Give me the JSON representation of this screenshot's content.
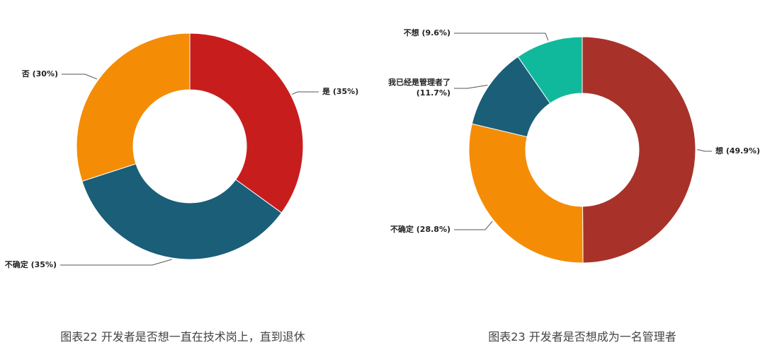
{
  "chart_data": [
    {
      "type": "pie",
      "donut": true,
      "title": "图表22 开发者是否想一直在技术岗上，直到退休",
      "categories": [
        "是",
        "不确定",
        "否"
      ],
      "values": [
        35,
        35,
        30
      ],
      "value_labels": [
        "(35%)",
        "(35%)",
        "(30%)"
      ],
      "colors": [
        "#c81d1d",
        "#1a5e78",
        "#f48c06"
      ]
    },
    {
      "type": "pie",
      "donut": true,
      "title": "图表23 开发者是否想成为一名管理者",
      "categories": [
        "想",
        "不确定",
        "我已经是管理者了",
        "不想"
      ],
      "values": [
        49.9,
        28.8,
        11.7,
        9.6
      ],
      "value_labels": [
        "(49.9%)",
        "(28.8%)",
        "(11.7%)",
        "(9.6%)"
      ],
      "colors": [
        "#a8322a",
        "#f48c06",
        "#1a5e78",
        "#10b99c"
      ]
    }
  ]
}
